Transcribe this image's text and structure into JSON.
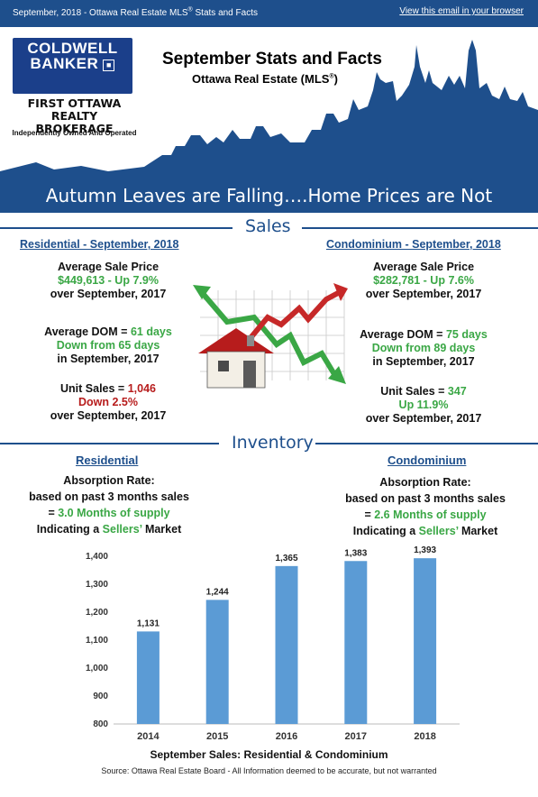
{
  "header": {
    "left_text_pre": "September, 2018 - Ottawa Real Estate MLS",
    "left_text_sup": "®",
    "left_text_post": " Stats and Facts",
    "browser_link": "View this email in your browser"
  },
  "brand": {
    "logo_line1": "COLDWELL",
    "logo_line2": "BANKER",
    "brokerage_line1": "FIRST OTTAWA REALTY",
    "brokerage_line2": "BROKERAGE",
    "independent": "Independently Owned And Operated"
  },
  "hero": {
    "title": "September Stats and Facts",
    "subtitle_pre": "Ottawa Real Estate (MLS",
    "subtitle_sup": "®",
    "subtitle_post": ")",
    "banner": "Autumn Leaves are Falling….Home Prices are Not"
  },
  "sales": {
    "section_label": "Sales",
    "residential": {
      "heading": "Residential - September, 2018",
      "avg_price_label": "Average Sale Price",
      "avg_price_value": "$449,613 - Up 7.9%",
      "avg_price_compare": "over September, 2017",
      "dom_label": "Average DOM = ",
      "dom_value": "61 days",
      "dom_change": "Down from 65 days",
      "dom_compare": "in September, 2017",
      "units_label": "Unit Sales = ",
      "units_value": "1,046",
      "units_change": "Down 2.5%",
      "units_compare": "over September, 2017"
    },
    "condominium": {
      "heading": "Condominium - September, 2018",
      "avg_price_label": "Average Sale Price",
      "avg_price_value": "$282,781 - Up 7.6%",
      "avg_price_compare": "over September, 2017",
      "dom_label": "Average DOM = ",
      "dom_value": "75 days",
      "dom_change": "Down from 89 days",
      "dom_compare": "in September, 2017",
      "units_label": "Unit Sales = ",
      "units_value": "347",
      "units_change": "Up 11.9%",
      "units_compare": "over September, 2017"
    }
  },
  "inventory": {
    "section_label": "Inventory",
    "residential": {
      "heading": "Residential",
      "line1": "Absorption Rate:",
      "line2": "based on past 3 months sales",
      "line3_pre": "= ",
      "line3_value": "3.0 Months of supply",
      "line4_pre": "Indicating a ",
      "line4_value": "Sellers’",
      "line4_post": " Market"
    },
    "condominium": {
      "heading": "Condominium",
      "line1": "Absorption Rate:",
      "line2": "based on past 3 months sales",
      "line3_pre": "= ",
      "line3_value": "2.6 Months of supply",
      "line4_pre": "Indicating a ",
      "line4_value": "Sellers’",
      "line4_post": " Market"
    }
  },
  "colors": {
    "brand_blue": "#1e4f8c",
    "bar_blue": "#5b9bd5",
    "up_green": "#3aa745",
    "down_red": "#b71c1c"
  },
  "chart_data": {
    "type": "bar",
    "title": "September Sales: Residential & Condominium",
    "categories": [
      "2014",
      "2015",
      "2016",
      "2017",
      "2018"
    ],
    "values": [
      1131,
      1244,
      1365,
      1383,
      1393
    ],
    "value_labels": [
      "1,131",
      "1,244",
      "1,365",
      "1,383",
      "1,393"
    ],
    "ylim": [
      800,
      1400
    ],
    "yticks": [
      800,
      900,
      1000,
      1100,
      1200,
      1300,
      1400
    ],
    "ytick_labels": [
      "800",
      "900",
      "1,000",
      "1,100",
      "1,200",
      "1,300",
      "1,400"
    ],
    "xlabel": "",
    "ylabel": "",
    "grid": false
  },
  "footer": {
    "source": "Source: Ottawa Real Estate Board - All Information deemed to be accurate, but not warranted"
  }
}
